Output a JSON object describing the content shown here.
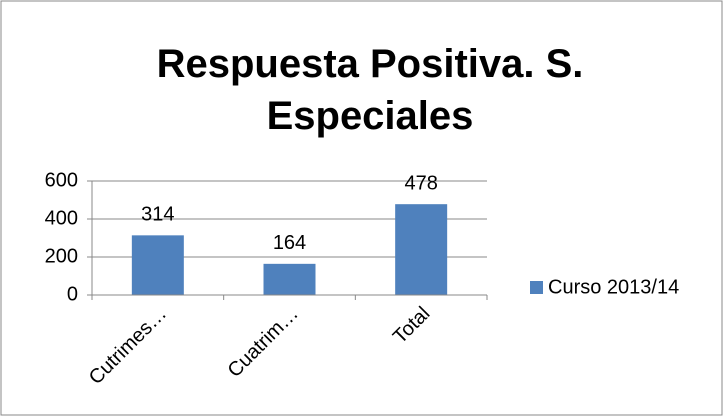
{
  "chart_data": {
    "type": "bar",
    "title": "Respuesta Positiva. S. Especiales",
    "categories": [
      "Cutrimes…",
      "Cuatrim…",
      "Total"
    ],
    "series": [
      {
        "name": "Curso 2013/14",
        "color": "#4f81bd",
        "values": [
          314,
          164,
          478
        ]
      }
    ],
    "ylim": [
      0,
      600
    ],
    "yticks": [
      0,
      200,
      400,
      600
    ],
    "grid": true,
    "legend": "right"
  }
}
